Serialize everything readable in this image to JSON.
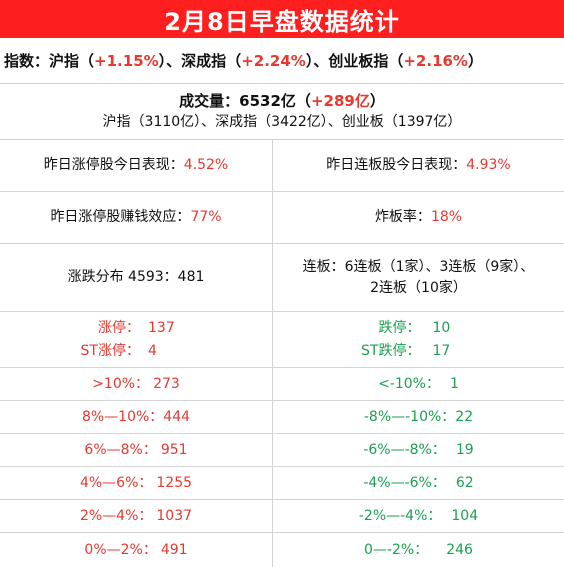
{
  "title": "2月8日早盘数据统计",
  "indices": {
    "label": "指数：",
    "sh_name": "沪指",
    "sh_change": "+1.15%",
    "sz_name": "深成指",
    "sz_change": "+2.24%",
    "cy_name": "创业板指",
    "cy_change": "+2.16%"
  },
  "volume": {
    "label": "成交量：",
    "total": "6532亿",
    "change": "+289亿",
    "detail": "沪指（3110亿）、深成指（3422亿）、创业板（1397亿）"
  },
  "yesterday_limit_up": {
    "label": "昨日涨停股今日表现：",
    "value": "4.52%"
  },
  "yesterday_consecutive": {
    "label": "昨日连板股今日表现：",
    "value": "4.93%"
  },
  "profit_effect": {
    "label": "昨日涨停股赚钱效应：",
    "value": "77%"
  },
  "break_rate": {
    "label": "炸板率：",
    "value": "18%"
  },
  "distribution": "涨跌分布 4593：481",
  "consecutive_boards": {
    "line1": "连板：6连板（1家）、3连板（9家）、",
    "line2": "2连板（10家）"
  },
  "limit_up": {
    "label": "涨停：",
    "value": "137"
  },
  "st_limit_up": {
    "label": "ST涨停：",
    "value": "4"
  },
  "limit_down": {
    "label": "跌停：",
    "value": "10"
  },
  "st_limit_down": {
    "label": "ST跌停：",
    "value": "17"
  },
  "ranges": [
    {
      "up_label": ">10%：",
      "up_value": "273",
      "down_label": "<-10%：",
      "down_value": "1"
    },
    {
      "up_label": "8%—10%：",
      "up_value": "444",
      "down_label": "-8%—-10%：",
      "down_value": "22"
    },
    {
      "up_label": "6%—8%：",
      "up_value": "951",
      "down_label": "-6%—-8%：",
      "down_value": "19"
    },
    {
      "up_label": "4%—6%：",
      "up_value": "1255",
      "down_label": "-4%—-6%：",
      "down_value": "62"
    },
    {
      "up_label": "2%—4%：",
      "up_value": "1037",
      "down_label": "-2%—-4%：",
      "down_value": "104"
    },
    {
      "up_label": "0%—2%：",
      "up_value": "491",
      "down_label": "0—-2%：",
      "down_value": "246"
    }
  ],
  "colors": {
    "title_bg": "#ff1f1f",
    "up": "#e8382f",
    "down": "#1aa050",
    "grid": "#d4d4d4"
  }
}
